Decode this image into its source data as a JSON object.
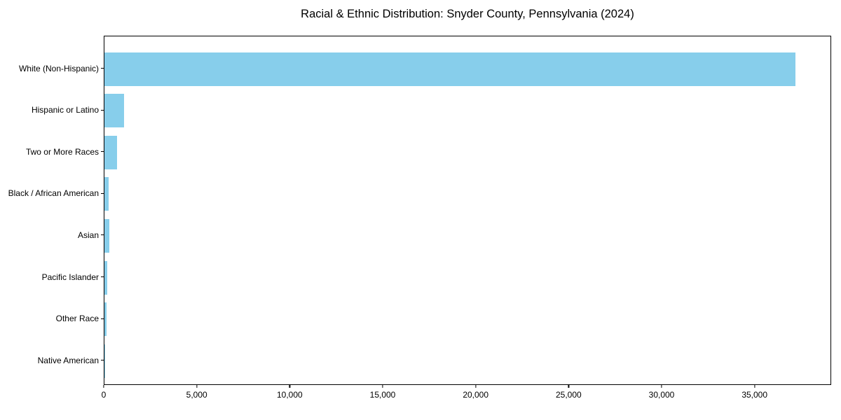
{
  "title": "Racial & Ethnic Distribution: Snyder County, Pennsylvania (2024)",
  "chart_data": {
    "type": "bar",
    "orientation": "horizontal",
    "title": "Racial & Ethnic Distribution: Snyder County, Pennsylvania (2024)",
    "xlabel": "",
    "ylabel": "",
    "categories": [
      "White (Non-Hispanic)",
      "Hispanic or Latino",
      "Two or More Races",
      "Black / African American",
      "Asian",
      "Pacific Islander",
      "Other Race",
      "Native American"
    ],
    "values": [
      37250,
      1040,
      690,
      235,
      275,
      155,
      100,
      30
    ],
    "xlim": [
      0,
      39120
    ],
    "x_ticks": [
      0,
      5000,
      10000,
      15000,
      20000,
      25000,
      30000,
      35000
    ],
    "x_tick_labels": [
      "0",
      "5,000",
      "10,000",
      "15,000",
      "20,000",
      "25,000",
      "30,000",
      "35,000"
    ],
    "bar_color": "#87CEEB",
    "text_color": "#000000",
    "grid": false,
    "legend_position": "none"
  }
}
